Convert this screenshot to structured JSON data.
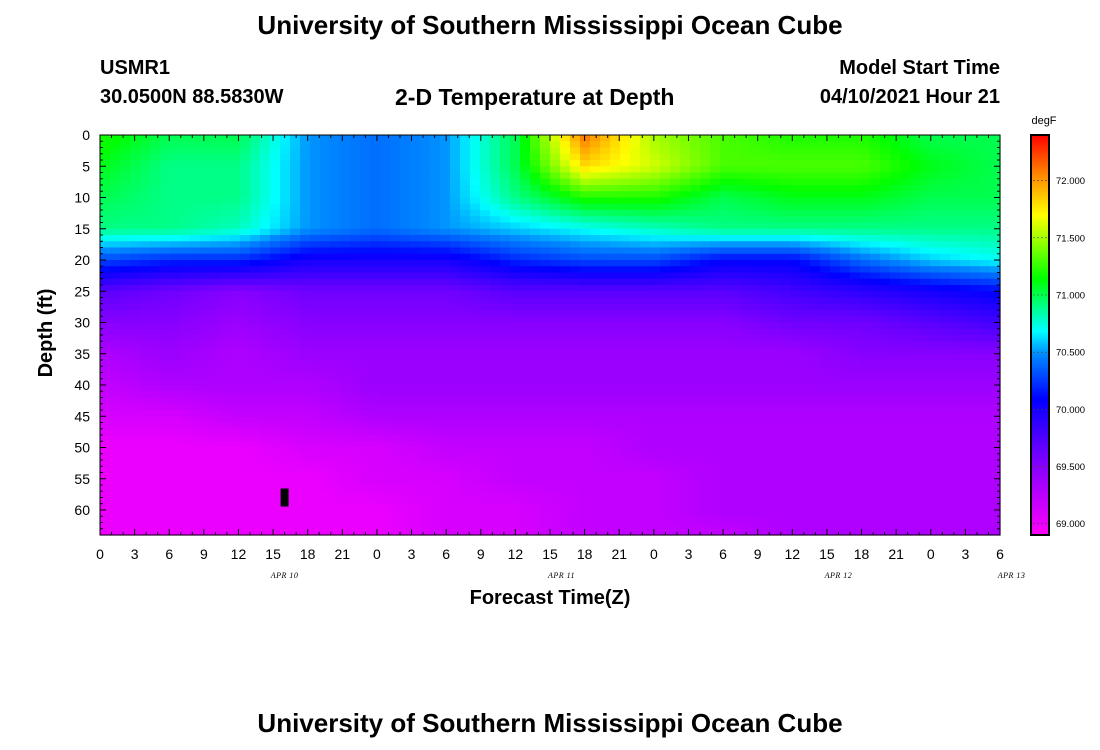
{
  "header": {
    "title": "University of Southern Mississippi Ocean Cube",
    "station_id": "USMR1",
    "coords": "30.0500N  88.5830W",
    "plot_title": "2-D Temperature at Depth",
    "model_label": "Model Start Time",
    "model_time": "04/10/2021 Hour 21"
  },
  "footer": {
    "title": "University of Southern Mississippi Ocean Cube"
  },
  "chart_data": {
    "type": "heatmap",
    "title": "2-D Temperature at Depth",
    "xlabel": "Forecast Time(Z)",
    "ylabel": "Depth (ft)",
    "x_ticks": [
      "0",
      "3",
      "6",
      "9",
      "12",
      "15",
      "18",
      "21",
      "0",
      "3",
      "6",
      "9",
      "12",
      "15",
      "18",
      "21",
      "0",
      "3",
      "6",
      "9",
      "12",
      "15",
      "18",
      "21",
      "0",
      "3",
      "6"
    ],
    "date_labels": [
      {
        "label": "APR 10",
        "hour": 16
      },
      {
        "label": "APR 11",
        "hour": 40
      },
      {
        "label": "APR 12",
        "hour": 64
      },
      {
        "label": "APR 13",
        "hour": 79
      }
    ],
    "x_range_hours": [
      0,
      78
    ],
    "y_ticks": [
      0,
      5,
      10,
      15,
      20,
      25,
      30,
      35,
      40,
      45,
      50,
      55,
      60
    ],
    "ylim": [
      0,
      64
    ],
    "colorbar": {
      "unit": "degF",
      "range": [
        68.9,
        72.4
      ],
      "ticks": [
        "72.000",
        "71.500",
        "71.000",
        "70.500",
        "70.000",
        "69.500",
        "69.000"
      ],
      "tick_values": [
        72.0,
        71.5,
        71.0,
        70.5,
        70.0,
        69.5,
        69.0
      ]
    },
    "grid_hours": [
      0,
      6,
      12,
      18,
      24,
      30,
      36,
      42,
      48,
      54,
      60,
      66,
      72,
      78
    ],
    "grid_depths": [
      0,
      5,
      10,
      15,
      20,
      25,
      30,
      35,
      40,
      45,
      50,
      55,
      60,
      64
    ],
    "values": [
      [
        71.2,
        71.0,
        71.0,
        70.5,
        70.4,
        70.5,
        71.0,
        72.1,
        71.5,
        71.3,
        71.2,
        71.2,
        71.0,
        71.0
      ],
      [
        71.1,
        70.9,
        70.9,
        70.5,
        70.4,
        70.5,
        71.0,
        71.8,
        71.6,
        71.3,
        71.3,
        71.3,
        71.1,
        71.0
      ],
      [
        71.0,
        70.9,
        70.9,
        70.5,
        70.4,
        70.5,
        70.9,
        71.2,
        71.2,
        71.0,
        71.1,
        71.1,
        71.0,
        71.0
      ],
      [
        70.9,
        70.9,
        70.8,
        70.5,
        70.4,
        70.5,
        70.6,
        70.7,
        70.8,
        70.9,
        70.9,
        70.9,
        70.9,
        70.9
      ],
      [
        70.3,
        70.2,
        70.2,
        70.0,
        70.0,
        70.0,
        70.2,
        70.3,
        70.3,
        70.1,
        70.1,
        70.4,
        70.6,
        70.7
      ],
      [
        69.7,
        69.6,
        69.5,
        69.6,
        69.6,
        69.6,
        69.7,
        69.7,
        69.7,
        69.7,
        69.8,
        69.9,
        70.0,
        70.1
      ],
      [
        69.5,
        69.5,
        69.4,
        69.5,
        69.5,
        69.5,
        69.5,
        69.5,
        69.5,
        69.5,
        69.6,
        69.6,
        69.7,
        69.8
      ],
      [
        69.3,
        69.4,
        69.3,
        69.4,
        69.4,
        69.4,
        69.4,
        69.4,
        69.4,
        69.4,
        69.4,
        69.5,
        69.5,
        69.5
      ],
      [
        69.2,
        69.3,
        69.3,
        69.3,
        69.4,
        69.4,
        69.4,
        69.4,
        69.4,
        69.4,
        69.4,
        69.4,
        69.4,
        69.4
      ],
      [
        69.1,
        69.1,
        69.2,
        69.2,
        69.3,
        69.3,
        69.3,
        69.3,
        69.3,
        69.3,
        69.3,
        69.3,
        69.3,
        69.3
      ],
      [
        69.0,
        69.0,
        69.0,
        69.1,
        69.1,
        69.2,
        69.2,
        69.2,
        69.3,
        69.3,
        69.3,
        69.3,
        69.3,
        69.3
      ],
      [
        69.0,
        69.0,
        69.0,
        69.0,
        69.1,
        69.1,
        69.2,
        69.2,
        69.2,
        69.3,
        69.3,
        69.3,
        69.3,
        69.3
      ],
      [
        69.0,
        69.0,
        69.0,
        69.0,
        69.0,
        69.1,
        69.1,
        69.2,
        69.2,
        69.3,
        69.3,
        69.3,
        69.3,
        69.3
      ],
      [
        69.0,
        69.0,
        69.0,
        69.0,
        69.0,
        69.1,
        69.1,
        69.2,
        69.2,
        69.2,
        69.3,
        69.3,
        69.3,
        69.3
      ]
    ],
    "marker": {
      "hour": 16,
      "depth": 58
    }
  }
}
